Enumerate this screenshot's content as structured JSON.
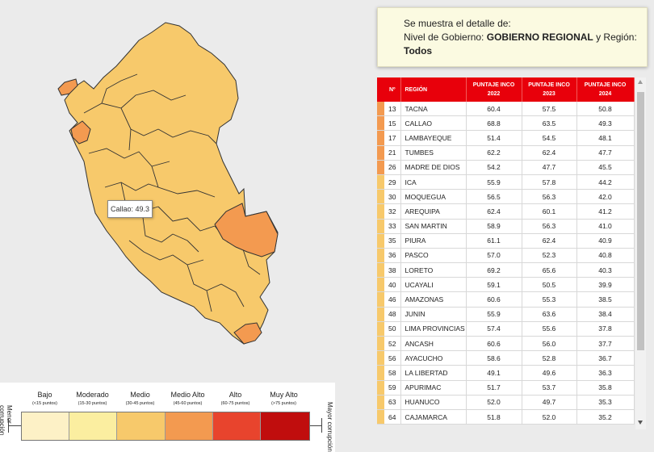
{
  "tooltip": {
    "text": "Callao: 49.3"
  },
  "info": {
    "line1": "Se muestra el detalle de:",
    "line2_prefix": "Nivel de Gobierno: ",
    "line2_bold": "GOBIERNO REGIONAL",
    "line2_mid": " y Región:",
    "line3": "Todos"
  },
  "table": {
    "headers": {
      "num": "Nº",
      "region": "REGIÓN",
      "y2022": "PUNTAJE INCO 2022",
      "y2023": "PUNTAJE INCO 2023",
      "y2024": "PUNTAJE INCO 2024"
    },
    "rows": [
      {
        "n": "13",
        "region": "TACNA",
        "v22": "60.4",
        "v23": "57.5",
        "v24": "50.8",
        "color": "#f39a50"
      },
      {
        "n": "15",
        "region": "CALLAO",
        "v22": "68.8",
        "v23": "63.5",
        "v24": "49.3",
        "color": "#f39a50"
      },
      {
        "n": "17",
        "region": "LAMBAYEQUE",
        "v22": "51.4",
        "v23": "54.5",
        "v24": "48.1",
        "color": "#f39a50"
      },
      {
        "n": "21",
        "region": "TUMBES",
        "v22": "62.2",
        "v23": "62.4",
        "v24": "47.7",
        "color": "#f39a50"
      },
      {
        "n": "26",
        "region": "MADRE DE DIOS",
        "v22": "54.2",
        "v23": "47.7",
        "v24": "45.5",
        "color": "#f39a50"
      },
      {
        "n": "29",
        "region": "ICA",
        "v22": "55.9",
        "v23": "57.8",
        "v24": "44.2",
        "color": "#f7c96b"
      },
      {
        "n": "30",
        "region": "MOQUEGUA",
        "v22": "56.5",
        "v23": "56.3",
        "v24": "42.0",
        "color": "#f7c96b"
      },
      {
        "n": "32",
        "region": "AREQUIPA",
        "v22": "62.4",
        "v23": "60.1",
        "v24": "41.2",
        "color": "#f7c96b"
      },
      {
        "n": "33",
        "region": "SAN MARTIN",
        "v22": "58.9",
        "v23": "56.3",
        "v24": "41.0",
        "color": "#f7c96b"
      },
      {
        "n": "35",
        "region": "PIURA",
        "v22": "61.1",
        "v23": "62.4",
        "v24": "40.9",
        "color": "#f7c96b"
      },
      {
        "n": "36",
        "region": "PASCO",
        "v22": "57.0",
        "v23": "52.3",
        "v24": "40.8",
        "color": "#f7c96b"
      },
      {
        "n": "38",
        "region": "LORETO",
        "v22": "69.2",
        "v23": "65.6",
        "v24": "40.3",
        "color": "#f7c96b"
      },
      {
        "n": "40",
        "region": "UCAYALI",
        "v22": "59.1",
        "v23": "50.5",
        "v24": "39.9",
        "color": "#f7c96b"
      },
      {
        "n": "46",
        "region": "AMAZONAS",
        "v22": "60.6",
        "v23": "55.3",
        "v24": "38.5",
        "color": "#f7c96b"
      },
      {
        "n": "48",
        "region": "JUNIN",
        "v22": "55.9",
        "v23": "63.6",
        "v24": "38.4",
        "color": "#f7c96b"
      },
      {
        "n": "50",
        "region": "LIMA PROVINCIAS",
        "v22": "57.4",
        "v23": "55.6",
        "v24": "37.8",
        "color": "#f7c96b"
      },
      {
        "n": "52",
        "region": "ANCASH",
        "v22": "60.6",
        "v23": "56.0",
        "v24": "37.7",
        "color": "#f7c96b"
      },
      {
        "n": "56",
        "region": "AYACUCHO",
        "v22": "58.6",
        "v23": "52.8",
        "v24": "36.7",
        "color": "#f7c96b"
      },
      {
        "n": "58",
        "region": "LA LIBERTAD",
        "v22": "49.1",
        "v23": "49.6",
        "v24": "36.3",
        "color": "#f7c96b"
      },
      {
        "n": "59",
        "region": "APURIMAC",
        "v22": "51.7",
        "v23": "53.7",
        "v24": "35.8",
        "color": "#f7c96b"
      },
      {
        "n": "63",
        "region": "HUANUCO",
        "v22": "52.0",
        "v23": "49.7",
        "v24": "35.3",
        "color": "#f7c96b"
      },
      {
        "n": "64",
        "region": "CAJAMARCA",
        "v22": "51.8",
        "v23": "52.0",
        "v24": "35.2",
        "color": "#f7c96b"
      }
    ]
  },
  "legend": {
    "left_label": "Menor corrupción",
    "right_label": "Mayor corrupción",
    "categories": [
      {
        "label": "Bajo",
        "range": "(<15 puntos)",
        "color": "#fdf1c6"
      },
      {
        "label": "Moderado",
        "range": "(15-30 puntos)",
        "color": "#fbeea0"
      },
      {
        "label": "Medio",
        "range": "(30-45 puntos)",
        "color": "#f7c96b"
      },
      {
        "label": "Medio Alto",
        "range": "(45-60 puntos)",
        "color": "#f39a50"
      },
      {
        "label": "Alto",
        "range": "(60-75 puntos)",
        "color": "#e8442d"
      },
      {
        "label": "Muy Alto",
        "range": "(>75 puntos)",
        "color": "#c00d0d"
      }
    ]
  },
  "colors": {
    "medio": "#f7c96b",
    "medio_alto": "#f39a50",
    "header_red": "#e8000b"
  }
}
